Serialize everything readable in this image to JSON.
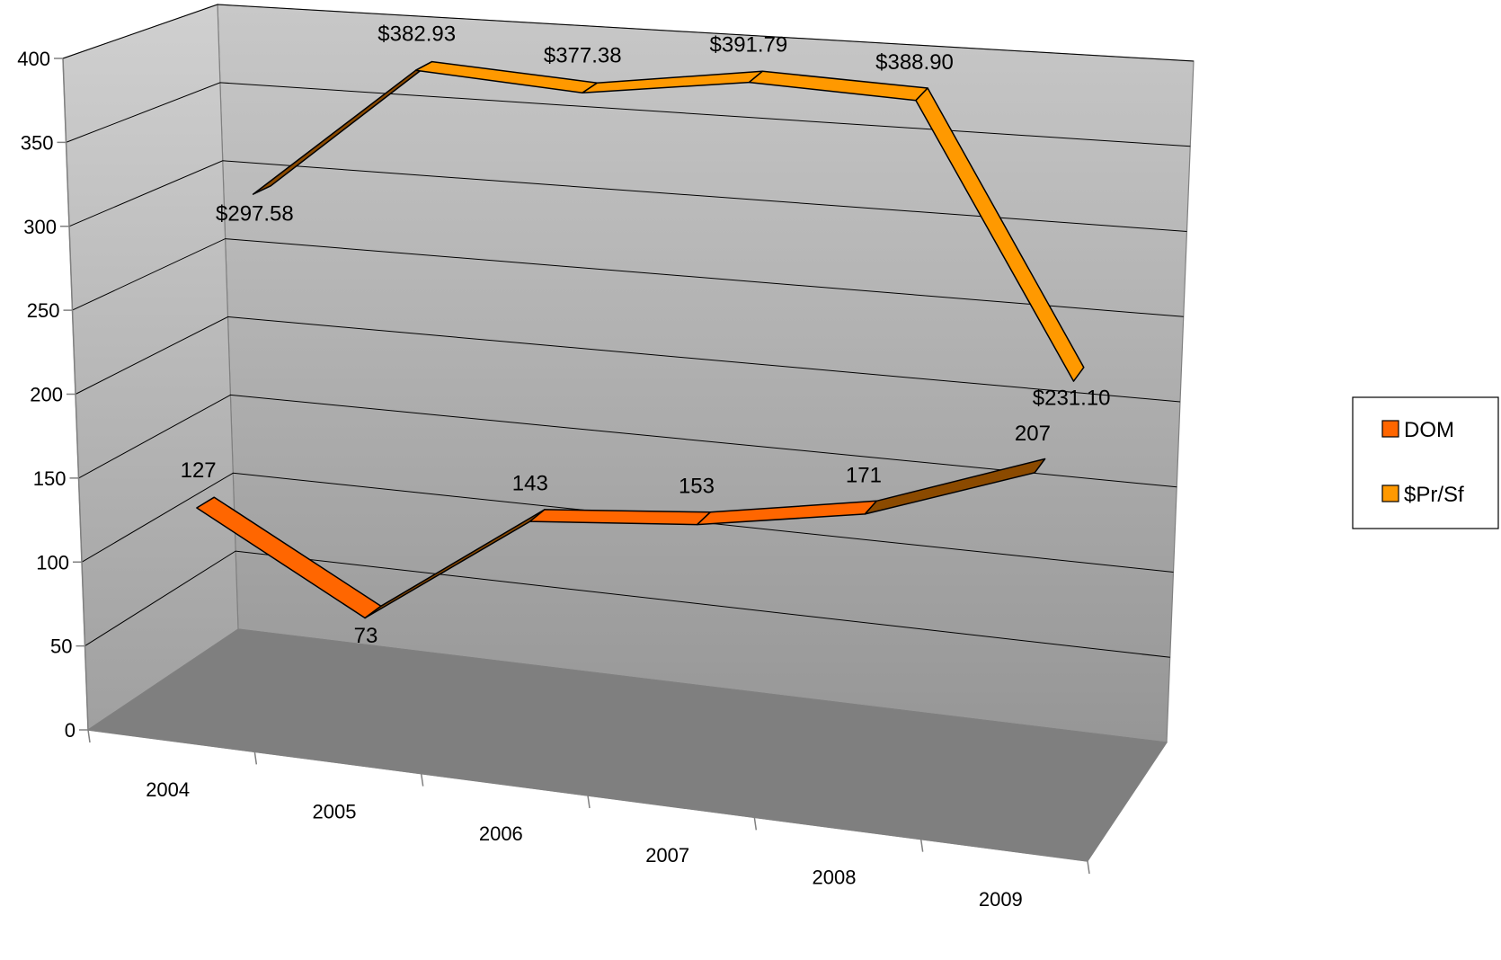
{
  "chart_data": {
    "type": "line",
    "style": "3d-ribbon",
    "categories": [
      "2004",
      "2005",
      "2006",
      "2007",
      "2008",
      "2009"
    ],
    "ylim": [
      0,
      400
    ],
    "yticks": [
      "0",
      "50",
      "100",
      "150",
      "200",
      "250",
      "300",
      "350",
      "400"
    ],
    "grid": true,
    "legend_position": "right",
    "series": [
      {
        "name": "DOM",
        "values": [
          127,
          73,
          143,
          153,
          171,
          207
        ],
        "labels": [
          "127",
          "73",
          "143",
          "153",
          "171",
          "207"
        ],
        "color": "#FF6600"
      },
      {
        "name": "$Pr/Sf",
        "values": [
          297.58,
          382.93,
          377.38,
          391.79,
          388.9,
          231.1
        ],
        "labels": [
          "$297.58",
          "$382.93",
          "$377.38",
          "$391.79",
          "$388.90",
          "$231.10"
        ],
        "color": "#FF9900"
      }
    ],
    "colors": {
      "back_wall_top": "#c8c8c8",
      "back_wall_bottom": "#969696",
      "floor": "#7f7f7f",
      "side_wall": "#a6a6a6",
      "ribbon_dark": "#8b4a00"
    }
  }
}
